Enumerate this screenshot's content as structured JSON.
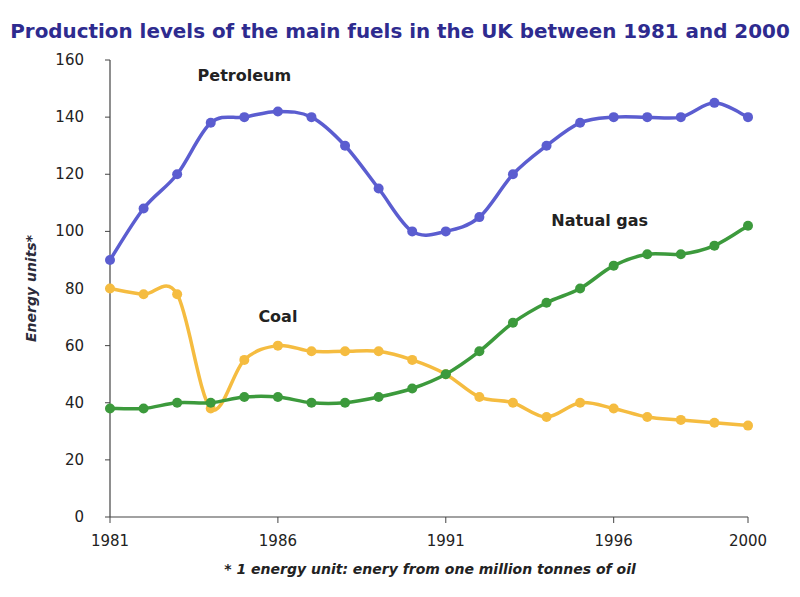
{
  "chart_data": {
    "type": "line",
    "title": "Production levels of the main fuels in the UK between 1981 and 2000",
    "y_label": "Energy units*",
    "footnote": "* 1 energy unit: enery from one million tonnes of oil",
    "x": [
      1981,
      1982,
      1983,
      1984,
      1985,
      1986,
      1987,
      1988,
      1989,
      1990,
      1991,
      1992,
      1993,
      1994,
      1995,
      1996,
      1997,
      1998,
      1999,
      2000
    ],
    "series": [
      {
        "name": "Petroleum",
        "color": "#5b5dd0",
        "values": [
          90,
          108,
          120,
          138,
          140,
          142,
          140,
          130,
          115,
          100,
          100,
          105,
          120,
          130,
          138,
          140,
          140,
          140,
          145,
          140
        ]
      },
      {
        "name": "Coal",
        "color": "#f5bc40",
        "values": [
          80,
          78,
          78,
          38,
          55,
          60,
          58,
          58,
          58,
          55,
          50,
          42,
          40,
          35,
          40,
          38,
          35,
          34,
          33,
          32
        ]
      },
      {
        "name": "Natual gas",
        "color": "#3c9a3c",
        "values": [
          38,
          38,
          40,
          40,
          42,
          42,
          40,
          40,
          42,
          45,
          50,
          58,
          68,
          75,
          80,
          88,
          92,
          92,
          95,
          102
        ]
      }
    ],
    "xlim": [
      1981,
      2000
    ],
    "ylim": [
      0,
      160
    ],
    "xticks": [
      1981,
      1986,
      1991,
      1996,
      2000
    ],
    "yticks": [
      0,
      20,
      40,
      60,
      80,
      100,
      120,
      140,
      160
    ],
    "grid": false,
    "marker": "circle"
  }
}
